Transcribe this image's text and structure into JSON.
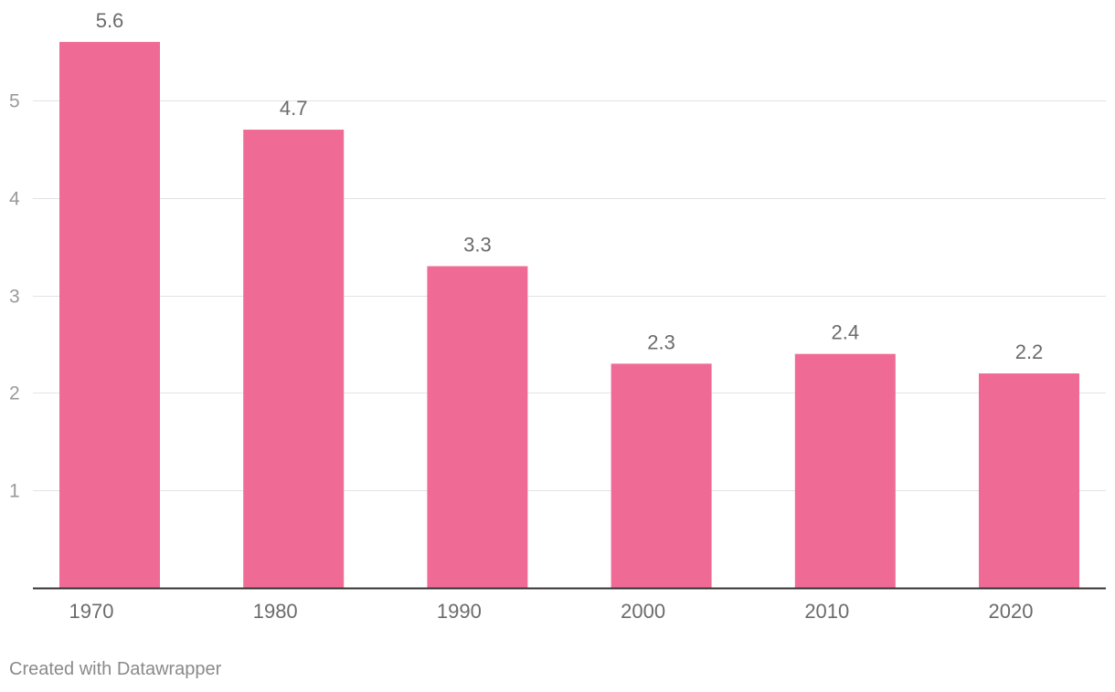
{
  "chart_data": {
    "type": "bar",
    "categories": [
      "1970",
      "1980",
      "1990",
      "2000",
      "2010",
      "2020"
    ],
    "values": [
      5.6,
      4.7,
      3.3,
      2.3,
      2.4,
      2.2
    ],
    "value_labels": [
      "5.6",
      "4.7",
      "3.3",
      "2.3",
      "2.4",
      "2.2"
    ],
    "y_ticks": [
      1,
      2,
      3,
      4,
      5
    ],
    "ylim": [
      0,
      5.6
    ],
    "grid": true,
    "title": "",
    "xlabel": "",
    "ylabel": ""
  },
  "colors": {
    "bar": "#ef6b96",
    "gridline": "#e3e3e3",
    "baseline": "#333333"
  },
  "footer": {
    "credit": "Created with Datawrapper"
  }
}
